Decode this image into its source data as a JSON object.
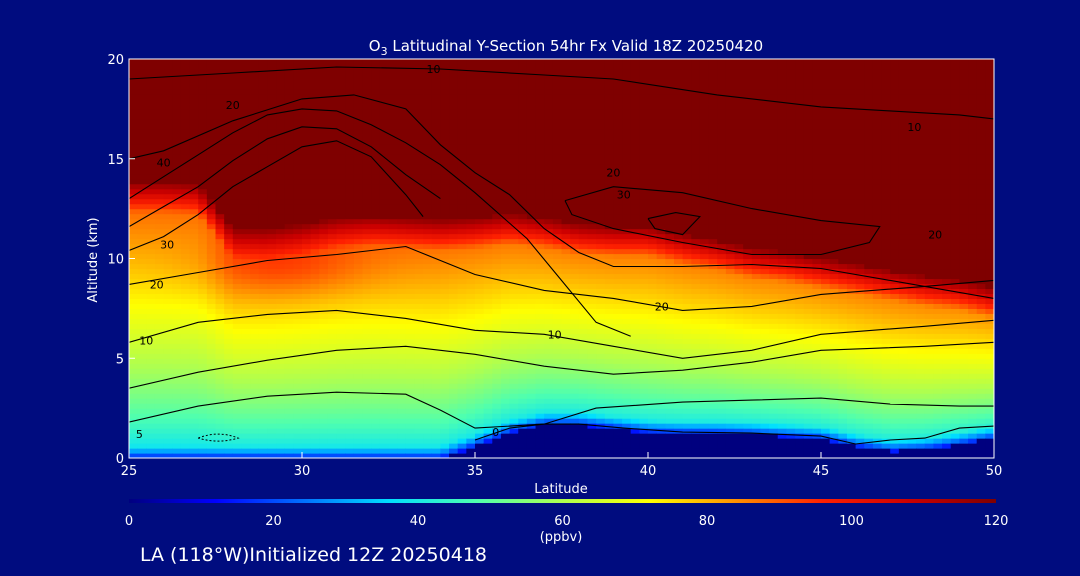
{
  "chart_data": {
    "type": "heatmap",
    "title": "O",
    "title_subscript": "3",
    "title_rest": " Latitudinal Y-Section 54hr  Fx Valid 18Z 20250420",
    "xlabel": "Latitude",
    "ylabel": "Altitude (km)",
    "xlim": [
      25,
      50
    ],
    "ylim": [
      0,
      20
    ],
    "x_ticks": [
      25,
      30,
      35,
      40,
      45,
      50
    ],
    "y_ticks": [
      0,
      5,
      10,
      15,
      20
    ],
    "colorbar": {
      "label": "(ppbv)",
      "range": [
        0,
        120
      ],
      "ticks": [
        0,
        20,
        40,
        60,
        80,
        100,
        120
      ],
      "colors": [
        "#00007f",
        "#0000ff",
        "#0070ff",
        "#00dfff",
        "#4fffaf",
        "#afff4f",
        "#ffff00",
        "#ff9000",
        "#ff2000",
        "#cc0000",
        "#7f0000"
      ]
    },
    "lat": [
      25,
      26,
      27,
      28,
      29,
      30,
      31,
      32,
      33,
      34,
      35,
      36,
      37,
      38,
      39,
      40,
      41,
      42,
      43,
      44,
      45,
      46,
      47,
      48,
      49,
      50
    ],
    "ground_km": [
      0,
      0,
      0,
      0,
      0,
      0,
      0,
      0,
      0,
      0,
      0.6,
      1.3,
      1.7,
      1.7,
      1.5,
      1.3,
      1.25,
      1.25,
      1.2,
      1.1,
      1.0,
      0.6,
      0.35,
      0.45,
      0.7,
      1.0
    ],
    "tropopause_km": [
      13.8,
      13.8,
      13.7,
      11.5,
      11.5,
      11.7,
      12.0,
      12.1,
      12.0,
      11.9,
      12.0,
      12.2,
      12.0,
      11.7,
      11.6,
      11.6,
      11.2,
      10.9,
      10.5,
      10.3,
      10.0,
      9.7,
      9.4,
      9.1,
      8.9,
      8.5
    ],
    "contour_levels_ppbv": [
      0,
      10,
      20,
      30,
      40
    ],
    "contour_labels": [
      {
        "text": "10",
        "lat": 33.8,
        "alt": 19.5
      },
      {
        "text": "20",
        "lat": 28.0,
        "alt": 17.7
      },
      {
        "text": "40",
        "lat": 26.0,
        "alt": 14.8
      },
      {
        "text": "10",
        "lat": 47.7,
        "alt": 16.6
      },
      {
        "text": "20",
        "lat": 39.0,
        "alt": 14.3
      },
      {
        "text": "30",
        "lat": 39.3,
        "alt": 13.2
      },
      {
        "text": "20",
        "lat": 48.3,
        "alt": 11.2
      },
      {
        "text": "30",
        "lat": 26.1,
        "alt": 10.7
      },
      {
        "text": "20",
        "lat": 25.8,
        "alt": 8.7
      },
      {
        "text": "20",
        "lat": 40.4,
        "alt": 7.6
      },
      {
        "text": "10",
        "lat": 25.5,
        "alt": 5.9
      },
      {
        "text": "10",
        "lat": 37.3,
        "alt": 6.2
      },
      {
        "text": "0",
        "lat": 35.6,
        "alt": 1.3
      },
      {
        "text": "5",
        "lat": 25.3,
        "alt": 1.2
      }
    ]
  },
  "footer": {
    "location_text": "LA (118°W)Initialized 12Z 20250418"
  }
}
